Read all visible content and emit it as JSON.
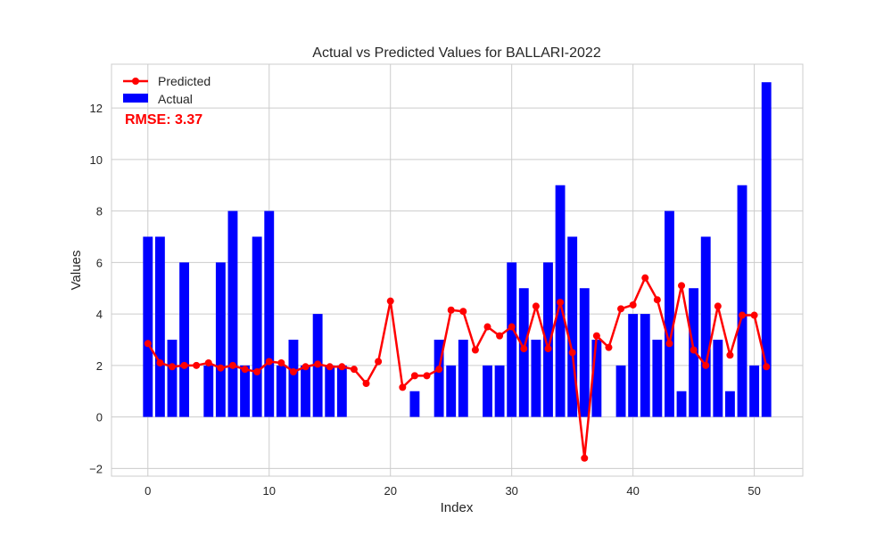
{
  "chart_data": {
    "type": "bar",
    "title": "Actual vs Predicted Values for BALLARI-2022",
    "xlabel": "Index",
    "ylabel": "Values",
    "xlim": [
      -3,
      54
    ],
    "ylim": [
      -2.3,
      13.7
    ],
    "x_ticks": [
      0,
      10,
      20,
      30,
      40,
      50
    ],
    "y_ticks": [
      -2,
      0,
      2,
      4,
      6,
      8,
      10,
      12
    ],
    "grid": true,
    "legend_position": "upper-left",
    "annotation": "RMSE: 3.37",
    "x": [
      0,
      1,
      2,
      3,
      4,
      5,
      6,
      7,
      8,
      9,
      10,
      11,
      12,
      13,
      14,
      15,
      16,
      17,
      18,
      19,
      20,
      21,
      22,
      23,
      24,
      25,
      26,
      27,
      28,
      29,
      30,
      31,
      32,
      33,
      34,
      35,
      36,
      37,
      38,
      39,
      40,
      41,
      42,
      43,
      44,
      45,
      46,
      47,
      48,
      49,
      50,
      51
    ],
    "series": [
      {
        "name": "Actual",
        "type": "bar",
        "color": "#0000ff",
        "values": [
          7,
          7,
          3,
          6,
          0,
          2,
          6,
          8,
          2,
          7,
          8,
          2,
          3,
          2,
          4,
          2,
          2,
          0,
          0,
          0,
          0,
          0,
          1,
          0,
          3,
          2,
          3,
          0,
          2,
          2,
          6,
          5,
          3,
          6,
          9,
          7,
          5,
          3,
          0,
          2,
          4,
          4,
          3,
          8,
          1,
          5,
          7,
          3,
          1,
          9,
          2,
          13
        ]
      },
      {
        "name": "Predicted",
        "type": "line",
        "color": "#ff0000",
        "values": [
          2.85,
          2.1,
          1.95,
          2.0,
          2.0,
          2.1,
          1.9,
          2.0,
          1.85,
          1.75,
          2.15,
          2.1,
          1.75,
          1.95,
          2.05,
          1.95,
          1.95,
          1.85,
          1.3,
          2.15,
          4.5,
          1.15,
          1.6,
          1.6,
          1.85,
          4.15,
          4.1,
          2.6,
          3.5,
          3.15,
          3.5,
          2.65,
          4.3,
          2.65,
          4.45,
          2.5,
          -1.6,
          3.15,
          2.7,
          4.2,
          4.35,
          5.4,
          4.55,
          2.85,
          5.1,
          2.6,
          2.0,
          4.3,
          2.4,
          3.95,
          3.95,
          1.95
        ]
      }
    ]
  }
}
